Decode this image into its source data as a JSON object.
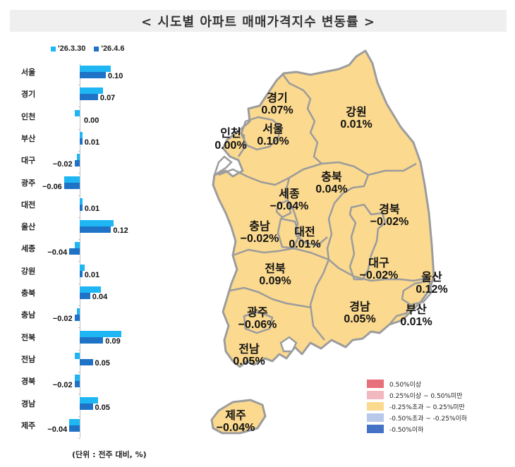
{
  "title": "< 시도별 아파트 매매가격지수 변동률 >",
  "legend": [
    {
      "label": "'26.3.30",
      "color": "#1fb6f4"
    },
    {
      "label": "'26.4.6",
      "color": "#1e73c7"
    }
  ],
  "unit_note": "(단위 : 전주 대비, %)",
  "chart_data": {
    "type": "bar",
    "orientation": "horizontal",
    "title": "시도별 아파트 매매가격지수 변동률",
    "xlabel": "",
    "ylabel": "",
    "unit": "전주 대비, %",
    "categories": [
      "서울",
      "경기",
      "인천",
      "부산",
      "대구",
      "광주",
      "대전",
      "울산",
      "세종",
      "강원",
      "충북",
      "충남",
      "전북",
      "전남",
      "경북",
      "경남",
      "제주"
    ],
    "series": [
      {
        "name": "'26.3.30",
        "color": "#1fb6f4",
        "values": [
          0.12,
          0.09,
          -0.02,
          0.01,
          -0.01,
          -0.06,
          0.01,
          0.13,
          -0.02,
          0.02,
          0.08,
          -0.01,
          0.16,
          -0.02,
          -0.02,
          0.07,
          -0.04
        ]
      },
      {
        "name": "'26.4.6",
        "color": "#1e73c7",
        "values": [
          0.1,
          0.07,
          0.0,
          0.01,
          -0.02,
          -0.06,
          0.01,
          0.12,
          -0.04,
          0.01,
          0.04,
          -0.02,
          0.09,
          0.05,
          -0.02,
          0.05,
          -0.04
        ]
      }
    ],
    "data_labels": [
      "0.10",
      "0.07",
      "0.00",
      "0.01",
      "-0.02",
      "-0.06",
      "0.01",
      "0.12",
      "-0.04",
      "0.01",
      "0.04",
      "-0.02",
      "0.09",
      "0.05",
      "-0.02",
      "0.05",
      "-0.04"
    ],
    "legend_position": "top",
    "grid": false
  },
  "map": {
    "fill_color": "#fbd98f",
    "border_color": "#9c9c9c",
    "regions": [
      {
        "name": "경기",
        "value": "0.07%"
      },
      {
        "name": "강원",
        "value": "0.01%"
      },
      {
        "name": "인천",
        "value": "0.00%"
      },
      {
        "name": "서울",
        "value": "0.10%"
      },
      {
        "name": "충북",
        "value": "0.04%"
      },
      {
        "name": "세종",
        "value": "-0.04%"
      },
      {
        "name": "경북",
        "value": "-0.02%"
      },
      {
        "name": "충남",
        "value": "-0.02%"
      },
      {
        "name": "대전",
        "value": "0.01%"
      },
      {
        "name": "전북",
        "value": "0.09%"
      },
      {
        "name": "대구",
        "value": "-0.02%"
      },
      {
        "name": "울산",
        "value": "0.12%"
      },
      {
        "name": "광주",
        "value": "-0.06%"
      },
      {
        "name": "경남",
        "value": "0.05%"
      },
      {
        "name": "부산",
        "value": "0.01%"
      },
      {
        "name": "전남",
        "value": "0.05%"
      },
      {
        "name": "제주",
        "value": "-0.04%"
      }
    ],
    "legend": [
      {
        "label": "0.50%이상",
        "color": "#e8707a"
      },
      {
        "label": "0.25%이상 ~ 0.50%미만",
        "color": "#f2b8c0"
      },
      {
        "label": "-0.25%초과 ~ 0.25%미만",
        "color": "#fbd98f"
      },
      {
        "label": "-0.50%초과 ~ -0.25%이하",
        "color": "#b8c8ea"
      },
      {
        "label": "-0.50%이하",
        "color": "#4472c4"
      }
    ]
  }
}
